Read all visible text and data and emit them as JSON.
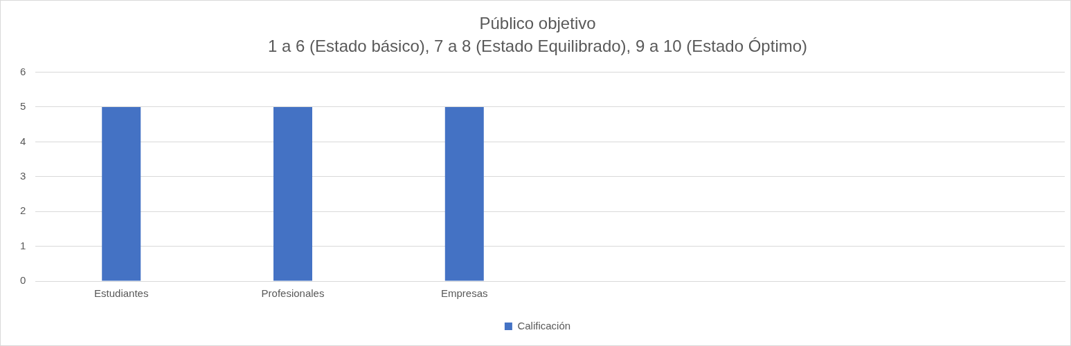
{
  "chart_data": {
    "type": "bar",
    "title": "Público objetivo",
    "subtitle": "1 a 6 (Estado básico), 7 a 8 (Estado Equilibrado), 9 a 10 (Estado Óptimo)",
    "categories": [
      "Estudiantes",
      "Profesionales",
      "Empresas",
      null,
      null,
      null
    ],
    "series": [
      {
        "name": "Calificación",
        "color": "#4472c4",
        "values": [
          5,
          5,
          5,
          null,
          null,
          null
        ]
      }
    ],
    "ylim": [
      0,
      6
    ],
    "yticks": [
      0,
      1,
      2,
      3,
      4,
      5,
      6
    ],
    "grid": "y",
    "legend": "bottom"
  }
}
